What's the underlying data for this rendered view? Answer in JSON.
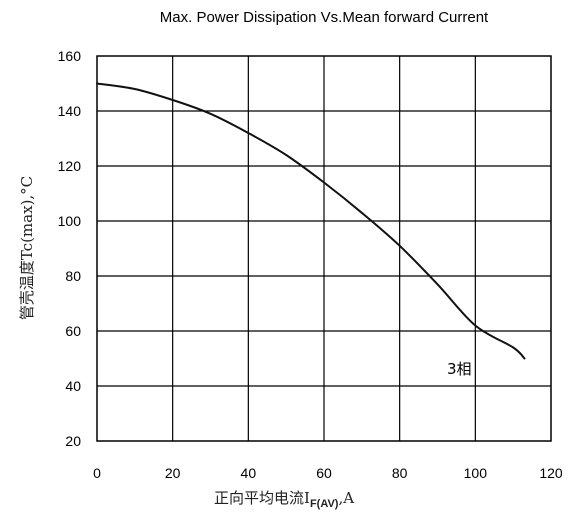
{
  "chart_data": {
    "type": "line",
    "title": "Max. Power Dissipation Vs.Mean forward Current",
    "ylabel": "管壳温度Tc(max),°C",
    "xlabel_main": "正向平均电流I",
    "xlabel_sub": "F(AV)",
    "xlabel_suffix": ",A",
    "xlim": [
      0,
      120
    ],
    "ylim": [
      20,
      160
    ],
    "x_ticks": [
      "0",
      "20",
      "40",
      "60",
      "80",
      "100",
      "120"
    ],
    "y_ticks": [
      "20",
      "40",
      "60",
      "80",
      "100",
      "120",
      "140",
      "160"
    ],
    "grid": true,
    "series": [
      {
        "name": "3相",
        "x": [
          0,
          10,
          20,
          30,
          40,
          50,
          60,
          70,
          80,
          90,
          100,
          110,
          113
        ],
        "y": [
          150,
          148,
          144,
          139,
          132,
          124,
          114,
          103,
          91,
          77,
          62,
          54,
          50
        ]
      }
    ],
    "annotation": "3相"
  }
}
